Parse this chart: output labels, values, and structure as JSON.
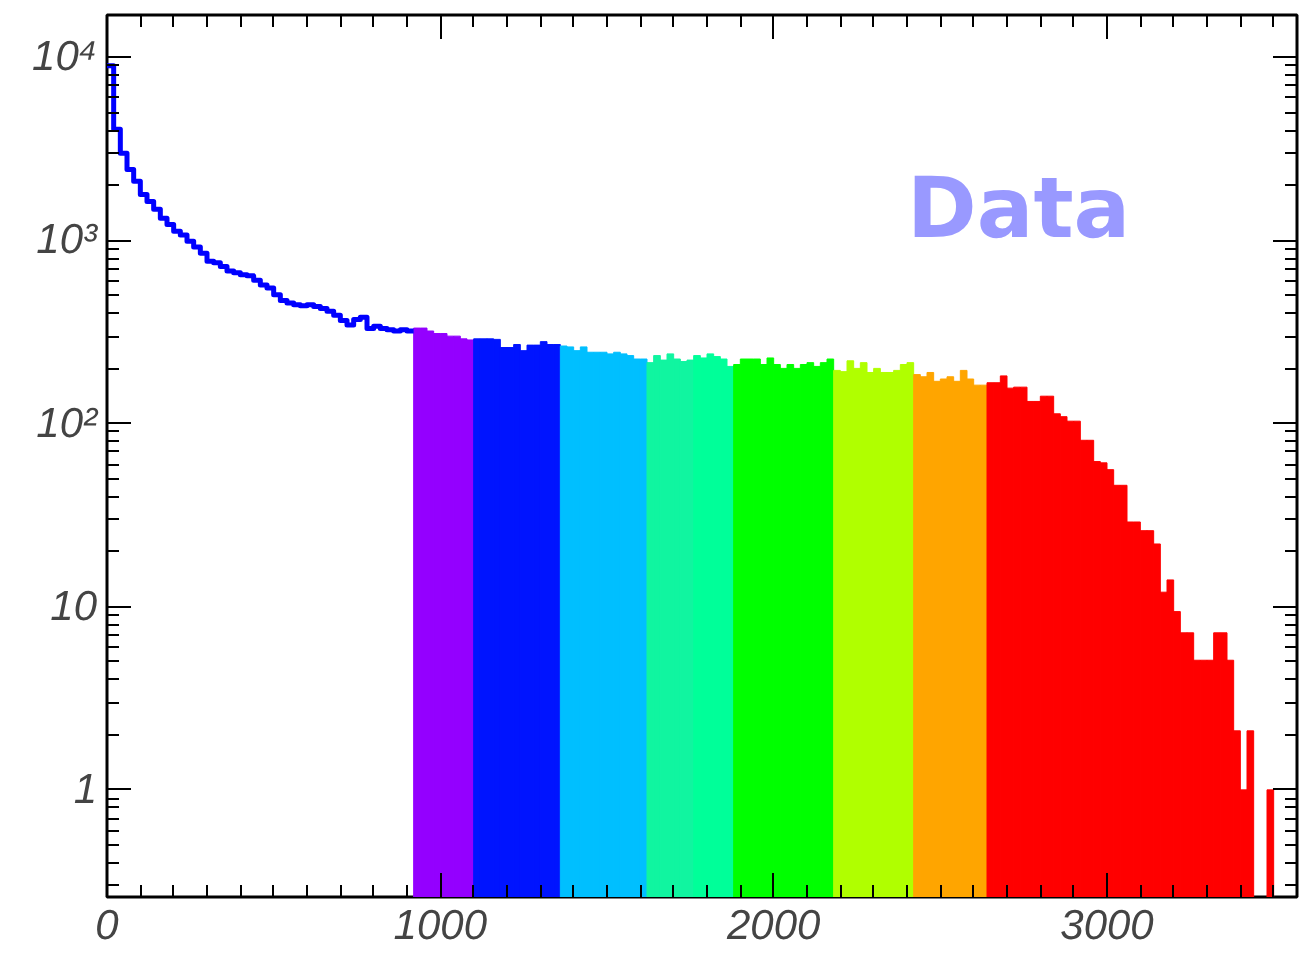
{
  "chart_data": {
    "type": "histogram",
    "log": "y",
    "xlim": [
      0,
      3570
    ],
    "ylim": [
      0.26,
      17000
    ],
    "xticks": [
      0,
      1000,
      2000,
      3000
    ],
    "yticks": [
      1,
      10,
      {
        "value": 100,
        "label": "10²"
      },
      {
        "value": 1000,
        "label": "10³"
      },
      {
        "value": 10000,
        "label": "10⁴"
      }
    ],
    "annotations": [
      "Data"
    ],
    "bins": [
      920,
      940,
      960,
      980,
      1000,
      1020,
      1040,
      1060,
      1080,
      1100,
      1120,
      1140,
      1160,
      1180,
      1200,
      1220,
      1240,
      1260,
      1280,
      1300,
      1320,
      1340,
      1360,
      1380,
      1400,
      1420,
      1440,
      1460,
      1480,
      1500,
      1520,
      1540,
      1560,
      1580,
      1600,
      1620,
      1640,
      1660,
      1680,
      1700,
      1720,
      1740,
      1760,
      1780,
      1800,
      1820,
      1840,
      1860,
      1880,
      1900,
      1920,
      1940,
      1960,
      1980,
      2000,
      2020,
      2040,
      2060,
      2080,
      2100,
      2120,
      2140,
      2160,
      2180,
      2200,
      2220,
      2240,
      2260,
      2280,
      2300,
      2320,
      2340,
      2360,
      2380,
      2400,
      2420,
      2440,
      2460,
      2480,
      2500,
      2520,
      2540,
      2560,
      2580,
      2600,
      2620,
      2640,
      2660,
      2680,
      2700,
      2720,
      2740,
      2760,
      2780,
      2800,
      2820,
      2840,
      2860,
      2880,
      2900,
      2920,
      2940,
      2960,
      2980,
      3000,
      3020,
      3040,
      3060,
      3080,
      3100,
      3120,
      3140,
      3160,
      3180,
      3200,
      3220,
      3240,
      3260,
      3280,
      3300,
      3320,
      3340,
      3360,
      3380,
      3400,
      3420,
      3440,
      3460,
      3480,
      3500
    ],
    "values": [
      332,
      332,
      320,
      310,
      310,
      300,
      300,
      290,
      286,
      290,
      290,
      290,
      288,
      260,
      260,
      270,
      250,
      268,
      268,
      280,
      270,
      270,
      265,
      262,
      250,
      262,
      245,
      245,
      245,
      240,
      245,
      240,
      235,
      225,
      225,
      215,
      235,
      222,
      240,
      225,
      218,
      222,
      235,
      228,
      240,
      232,
      225,
      205,
      210,
      225,
      225,
      225,
      210,
      228,
      210,
      200,
      210,
      200,
      210,
      215,
      205,
      215,
      225,
      195,
      192,
      220,
      200,
      215,
      190,
      200,
      190,
      190,
      195,
      210,
      215,
      185,
      180,
      190,
      170,
      175,
      180,
      170,
      195,
      175,
      162,
      162,
      167,
      167,
      182,
      156,
      158,
      158,
      132,
      132,
      141,
      141,
      113,
      109,
      103,
      103,
      81,
      81,
      62,
      61,
      56,
      46,
      46,
      29,
      29,
      26,
      26,
      22,
      12,
      14,
      9.4,
      7.2,
      7.2,
      5.1,
      5.1,
      5.1,
      7.2,
      7.2,
      5.1,
      2.1,
      1,
      2.1,
      null,
      null,
      1
    ],
    "colors": [
      "#9400ff",
      "#9400ff",
      "#9400ff",
      "#9400ff",
      "#9400ff",
      "#9400ff",
      "#9400ff",
      "#9400ff",
      "#9400ff",
      "#0014ff",
      "#0014ff",
      "#0014ff",
      "#0014ff",
      "#0014ff",
      "#0014ff",
      "#0014ff",
      "#0014ff",
      "#0014ff",
      "#0014ff",
      "#0014ff",
      "#0014ff",
      "#0014ff",
      "#00bfff",
      "#00bfff",
      "#00bfff",
      "#00bfff",
      "#00bfff",
      "#00bfff",
      "#00bfff",
      "#00bfff",
      "#00bfff",
      "#00bfff",
      "#00bfff",
      "#00bfff",
      "#00bfff",
      "#10f5a0",
      "#10f5a0",
      "#10f5a0",
      "#10f5a0",
      "#10f5a0",
      "#10f5a0",
      "#10f5a0",
      "#00ff99",
      "#00ff99",
      "#00ff99",
      "#00ff99",
      "#00ff99",
      "#00ff99",
      "#00ff00",
      "#00ff00",
      "#00ff00",
      "#00ff00",
      "#00ff00",
      "#00ff00",
      "#00ff00",
      "#00ff00",
      "#00ff00",
      "#00ff00",
      "#00ff00",
      "#00ff00",
      "#00ff00",
      "#00ff00",
      "#00ff00",
      "#b0ff00",
      "#b0ff00",
      "#b0ff00",
      "#b0ff00",
      "#b0ff00",
      "#b0ff00",
      "#b0ff00",
      "#b0ff00",
      "#b0ff00",
      "#b0ff00",
      "#b0ff00",
      "#b0ff00",
      "#ffa500",
      "#ffa500",
      "#ffa500",
      "#ffa500",
      "#ffa500",
      "#ffa500",
      "#ffa500",
      "#ffa500",
      "#ffa500",
      "#ffa500",
      "#ffa500",
      "#ff0000",
      "#ff0000",
      "#ff0000",
      "#ff0000",
      "#ff0000",
      "#ff0000",
      "#ff0000",
      "#ff0000",
      "#ff0000",
      "#ff0000",
      "#ff0000",
      "#ff0000",
      "#ff0000",
      "#ff0000",
      "#ff0000",
      "#ff0000",
      "#ff0000",
      "#ff0000",
      "#ff0000",
      "#ff0000",
      "#ff0000",
      "#ff0000",
      "#ff0000",
      "#ff0000",
      "#ff0000",
      "#ff0000",
      "#ff0000",
      "#ff0000",
      "#ff0000",
      "#ff0000",
      "#ff0000",
      "#ff0000",
      "#ff0000",
      "#ff0000",
      "#ff0000",
      "#ff0000",
      "#ff0000",
      "#ff0000",
      "#ff0000",
      "#ff0000",
      "#ff0000",
      "#ff0000",
      "#ff0000"
    ],
    "series": [
      {
        "type": "step",
        "color": "#0000ff",
        "x": [
          0,
          20,
          40,
          60,
          80,
          100,
          120,
          140,
          160,
          180,
          200,
          220,
          240,
          260,
          280,
          300,
          320,
          340,
          360,
          380,
          400,
          420,
          440,
          460,
          480,
          500,
          520,
          540,
          560,
          580,
          600,
          620,
          640,
          660,
          680,
          700,
          720,
          740,
          760,
          780,
          800,
          820,
          840,
          860,
          880,
          900
        ],
        "values": [
          8970,
          4040,
          2990,
          2440,
          2100,
          1780,
          1630,
          1480,
          1320,
          1220,
          1120,
          1070,
          990,
          920,
          850,
          770,
          755,
          720,
          680,
          665,
          650,
          640,
          605,
          570,
          550,
          505,
          470,
          455,
          445,
          440,
          445,
          435,
          425,
          410,
          390,
          365,
          345,
          370,
          380,
          330,
          340,
          330,
          325,
          320,
          325,
          320
        ]
      }
    ]
  }
}
